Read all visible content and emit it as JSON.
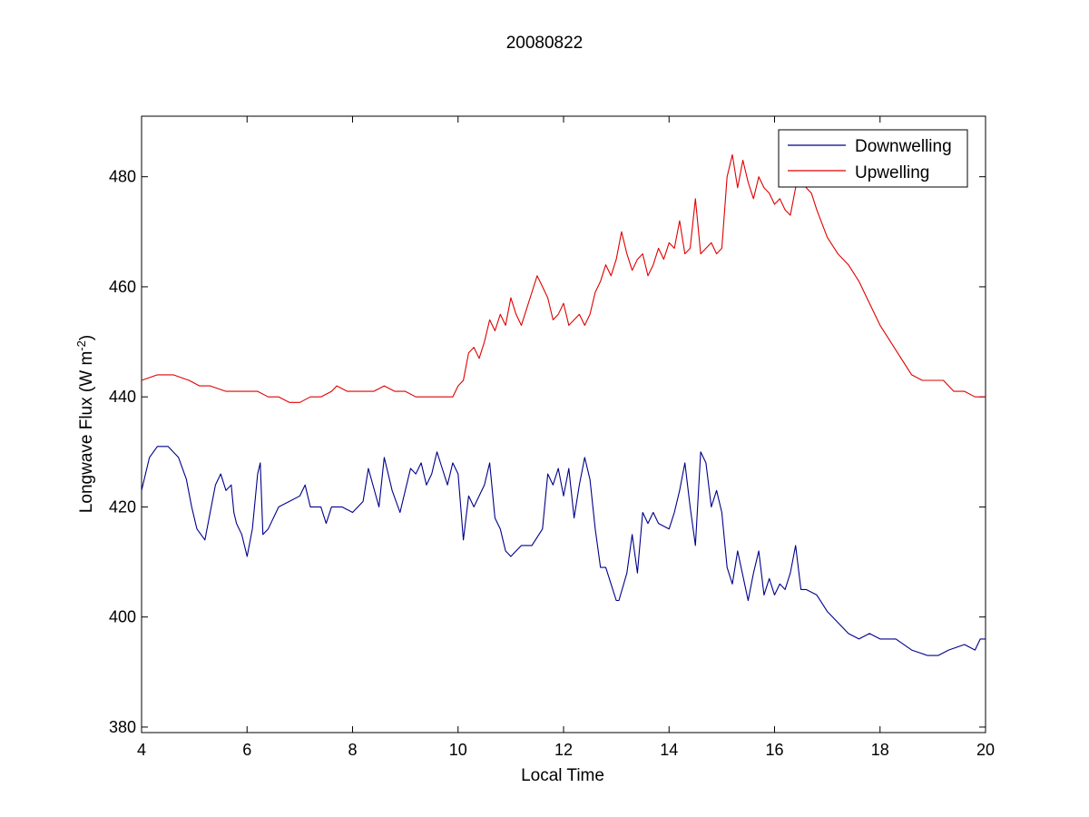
{
  "chart_data": {
    "type": "line",
    "title": "20080822",
    "xlabel": "Local Time",
    "ylabel_base": "Longwave Flux (W m",
    "ylabel_sup": "-2",
    "ylabel_end": ")",
    "xlim": [
      4,
      20
    ],
    "ylim": [
      379,
      491
    ],
    "xticks": [
      4,
      6,
      8,
      10,
      12,
      14,
      16,
      18,
      20
    ],
    "yticks": [
      380,
      400,
      420,
      440,
      460,
      480
    ],
    "grid": false,
    "legend_position": "top-right",
    "series": [
      {
        "name": "Downwelling",
        "color": "#00008b",
        "x": [
          4.0,
          4.15,
          4.3,
          4.5,
          4.7,
          4.85,
          4.95,
          5.05,
          5.2,
          5.3,
          5.4,
          5.5,
          5.6,
          5.7,
          5.75,
          5.8,
          5.9,
          6.0,
          6.1,
          6.2,
          6.25,
          6.3,
          6.4,
          6.6,
          6.8,
          7.0,
          7.1,
          7.2,
          7.4,
          7.5,
          7.6,
          7.8,
          8.0,
          8.2,
          8.3,
          8.5,
          8.6,
          8.75,
          8.9,
          9.0,
          9.1,
          9.2,
          9.3,
          9.4,
          9.5,
          9.6,
          9.7,
          9.8,
          9.9,
          10.0,
          10.1,
          10.2,
          10.3,
          10.4,
          10.5,
          10.6,
          10.7,
          10.8,
          10.9,
          11.0,
          11.2,
          11.4,
          11.6,
          11.7,
          11.8,
          11.9,
          12.0,
          12.1,
          12.2,
          12.3,
          12.4,
          12.5,
          12.6,
          12.7,
          12.8,
          12.9,
          13.0,
          13.05,
          13.2,
          13.3,
          13.4,
          13.5,
          13.6,
          13.7,
          13.8,
          14.0,
          14.1,
          14.2,
          14.3,
          14.4,
          14.5,
          14.6,
          14.7,
          14.8,
          14.9,
          15.0,
          15.1,
          15.2,
          15.3,
          15.5,
          15.6,
          15.7,
          15.8,
          15.9,
          16.0,
          16.1,
          16.2,
          16.3,
          16.4,
          16.5,
          16.6,
          16.8,
          17.0,
          17.2,
          17.4,
          17.6,
          17.8,
          18.0,
          18.3,
          18.6,
          18.9,
          19.1,
          19.3,
          19.6,
          19.8,
          19.9,
          20.0
        ],
        "y": [
          423,
          429,
          431,
          431,
          429,
          425,
          420,
          416,
          414,
          419,
          424,
          426,
          423,
          424,
          419,
          417,
          415,
          411,
          416,
          426,
          428,
          415,
          416,
          420,
          421,
          422,
          424,
          420,
          420,
          417,
          420,
          420,
          419,
          421,
          427,
          420,
          429,
          423,
          419,
          423,
          427,
          426,
          428,
          424,
          426,
          430,
          427,
          424,
          428,
          426,
          414,
          422,
          420,
          422,
          424,
          428,
          418,
          416,
          412,
          411,
          413,
          413,
          416,
          426,
          424,
          427,
          422,
          427,
          418,
          424,
          429,
          425,
          416,
          409,
          409,
          406,
          403,
          403,
          408,
          415,
          408,
          419,
          417,
          419,
          417,
          416,
          419,
          423,
          428,
          420,
          413,
          430,
          428,
          420,
          423,
          419,
          409,
          406,
          412,
          403,
          408,
          412,
          404,
          407,
          404,
          406,
          405,
          408,
          413,
          405,
          405,
          404,
          401,
          399,
          397,
          396,
          397,
          396,
          396,
          394,
          393,
          393,
          394,
          395,
          394,
          396,
          396
        ]
      },
      {
        "name": "Upwelling",
        "color": "#e00000",
        "x": [
          4.0,
          4.3,
          4.6,
          4.9,
          5.1,
          5.3,
          5.6,
          5.9,
          6.2,
          6.4,
          6.6,
          6.8,
          7.0,
          7.2,
          7.4,
          7.6,
          7.7,
          7.9,
          8.2,
          8.4,
          8.6,
          8.8,
          9.0,
          9.2,
          9.4,
          9.6,
          9.8,
          9.9,
          10.0,
          10.1,
          10.2,
          10.3,
          10.4,
          10.5,
          10.6,
          10.7,
          10.8,
          10.9,
          11.0,
          11.1,
          11.2,
          11.3,
          11.4,
          11.5,
          11.6,
          11.7,
          11.8,
          11.9,
          12.0,
          12.1,
          12.2,
          12.3,
          12.4,
          12.5,
          12.6,
          12.7,
          12.8,
          12.9,
          13.0,
          13.1,
          13.2,
          13.3,
          13.4,
          13.5,
          13.6,
          13.7,
          13.8,
          13.9,
          14.0,
          14.1,
          14.2,
          14.3,
          14.4,
          14.5,
          14.6,
          14.7,
          14.8,
          14.9,
          15.0,
          15.1,
          15.2,
          15.3,
          15.4,
          15.5,
          15.6,
          15.7,
          15.8,
          15.9,
          16.0,
          16.1,
          16.2,
          16.3,
          16.4,
          16.5,
          16.6,
          16.7,
          16.8,
          17.0,
          17.2,
          17.4,
          17.6,
          17.8,
          18.0,
          18.2,
          18.4,
          18.6,
          18.8,
          19.0,
          19.2,
          19.4,
          19.6,
          19.8,
          20.0
        ],
        "y": [
          443,
          444,
          444,
          443,
          442,
          442,
          441,
          441,
          441,
          440,
          440,
          439,
          439,
          440,
          440,
          441,
          442,
          441,
          441,
          441,
          442,
          441,
          441,
          440,
          440,
          440,
          440,
          440,
          442,
          443,
          448,
          449,
          447,
          450,
          454,
          452,
          455,
          453,
          458,
          455,
          453,
          456,
          459,
          462,
          460,
          458,
          454,
          455,
          457,
          453,
          454,
          455,
          453,
          455,
          459,
          461,
          464,
          462,
          465,
          470,
          466,
          463,
          465,
          466,
          462,
          464,
          467,
          465,
          468,
          467,
          472,
          466,
          467,
          476,
          466,
          467,
          468,
          466,
          467,
          480,
          484,
          478,
          483,
          479,
          476,
          480,
          478,
          477,
          475,
          476,
          474,
          473,
          478,
          479,
          478,
          477,
          474,
          469,
          466,
          464,
          461,
          457,
          453,
          450,
          447,
          444,
          443,
          443,
          443,
          441,
          441,
          440,
          440
        ]
      }
    ]
  }
}
